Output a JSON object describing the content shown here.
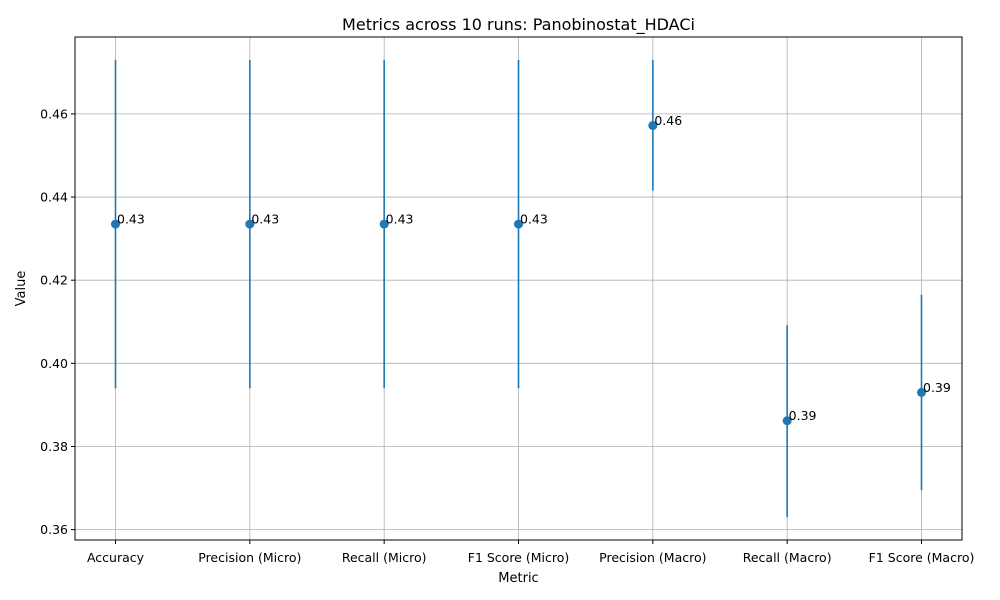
{
  "chart_data": {
    "type": "scatter",
    "title": "Metrics across 10 runs: Panobinostat_HDACi",
    "xlabel": "Metric",
    "ylabel": "Value",
    "categories": [
      "Accuracy",
      "Precision (Micro)",
      "Recall (Micro)",
      "F1 Score (Micro)",
      "Precision (Macro)",
      "Recall (Macro)",
      "F1 Score (Macro)"
    ],
    "series": [
      {
        "values": [
          0.4335,
          0.4335,
          0.4335,
          0.4335,
          0.4572,
          0.3862,
          0.393
        ],
        "error_low": [
          0.394,
          0.394,
          0.394,
          0.394,
          0.4415,
          0.363,
          0.3695
        ],
        "error_high": [
          0.473,
          0.473,
          0.473,
          0.473,
          0.473,
          0.4092,
          0.4165
        ],
        "labels": [
          "0.43",
          "0.43",
          "0.43",
          "0.43",
          "0.46",
          "0.39",
          "0.39"
        ]
      }
    ],
    "ylim": [
      0.3575,
      0.4785
    ],
    "yticks": [
      "0.36",
      "0.38",
      "0.40",
      "0.42",
      "0.44",
      "0.46"
    ],
    "grid": true,
    "color": "#1f77b4"
  }
}
